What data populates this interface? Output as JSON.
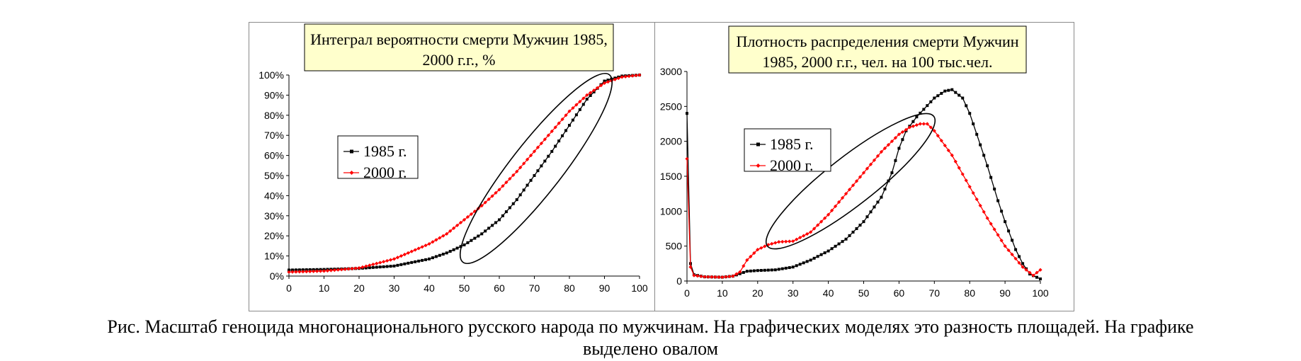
{
  "colors": {
    "series1985": "#000000",
    "series2000": "#ff0000",
    "title_bg": "#ffffcc",
    "oval": "#000000"
  },
  "caption": {
    "line1": "Рис. Масштаб геноцида многонационального русского народа по мужчинам. На графических моделях это разность площадей. На графике",
    "line2": "выделено овалом"
  },
  "chart_data": [
    {
      "type": "line",
      "title_line1": "Интеграл вероятности смерти Мужчин 1985,",
      "title_line2": "2000 г.г., %",
      "xlabel": "",
      "ylabel": "",
      "xlim": [
        0,
        100
      ],
      "ylim": [
        0,
        100
      ],
      "xticks": [
        "0",
        "10",
        "20",
        "30",
        "40",
        "50",
        "60",
        "70",
        "80",
        "90",
        "100"
      ],
      "yticks": [
        "0%",
        "10%",
        "20%",
        "30%",
        "40%",
        "50%",
        "60%",
        "70%",
        "80%",
        "90%",
        "100%"
      ],
      "legend_position": "left-middle",
      "highlight": "oval",
      "series": [
        {
          "name": "1985 г.",
          "color_key": "series1985",
          "points": [
            [
              0,
              3
            ],
            [
              10,
              3.3
            ],
            [
              20,
              3.8
            ],
            [
              30,
              5
            ],
            [
              40,
              8.5
            ],
            [
              45,
              11.5
            ],
            [
              50,
              15.5
            ],
            [
              55,
              21
            ],
            [
              60,
              28
            ],
            [
              65,
              38
            ],
            [
              70,
              50
            ],
            [
              75,
              62
            ],
            [
              80,
              75
            ],
            [
              85,
              88
            ],
            [
              90,
              97
            ],
            [
              95,
              99.5
            ],
            [
              100,
              100
            ]
          ]
        },
        {
          "name": "2000 г.",
          "color_key": "series2000",
          "points": [
            [
              0,
              2
            ],
            [
              10,
              2.5
            ],
            [
              20,
              4
            ],
            [
              30,
              8.5
            ],
            [
              40,
              16
            ],
            [
              45,
              21
            ],
            [
              50,
              28
            ],
            [
              55,
              35
            ],
            [
              60,
              43
            ],
            [
              65,
              52
            ],
            [
              70,
              62
            ],
            [
              75,
              72
            ],
            [
              80,
              82
            ],
            [
              85,
              90
            ],
            [
              90,
              96
            ],
            [
              95,
              99
            ],
            [
              100,
              100
            ]
          ]
        }
      ]
    },
    {
      "type": "line",
      "title_line1": "Плотность распределения смерти Мужчин",
      "title_line2": "1985, 2000 г.г., чел. на 100 тыс.чел.",
      "xlabel": "",
      "ylabel": "",
      "xlim": [
        0,
        100
      ],
      "ylim": [
        0,
        3000
      ],
      "xticks": [
        "0",
        "10",
        "20",
        "30",
        "40",
        "50",
        "60",
        "70",
        "80",
        "90",
        "100"
      ],
      "yticks": [
        "0",
        "500",
        "1000",
        "1500",
        "2000",
        "2500",
        "3000"
      ],
      "legend_position": "top-left",
      "highlight": "oval",
      "series": [
        {
          "name": "1985 г.",
          "color_key": "series1985",
          "points": [
            [
              0,
              2400
            ],
            [
              1,
              250
            ],
            [
              2,
              90
            ],
            [
              5,
              60
            ],
            [
              10,
              55
            ],
            [
              13,
              70
            ],
            [
              17,
              140
            ],
            [
              20,
              150
            ],
            [
              25,
              160
            ],
            [
              30,
              200
            ],
            [
              35,
              300
            ],
            [
              40,
              430
            ],
            [
              45,
              600
            ],
            [
              50,
              850
            ],
            [
              55,
              1200
            ],
            [
              58,
              1550
            ],
            [
              60,
              1900
            ],
            [
              62,
              2150
            ],
            [
              65,
              2350
            ],
            [
              70,
              2620
            ],
            [
              73,
              2720
            ],
            [
              75,
              2740
            ],
            [
              78,
              2620
            ],
            [
              80,
              2400
            ],
            [
              85,
              1650
            ],
            [
              88,
              1150
            ],
            [
              90,
              850
            ],
            [
              93,
              450
            ],
            [
              95,
              250
            ],
            [
              97,
              100
            ],
            [
              100,
              30
            ]
          ]
        },
        {
          "name": "2000 г.",
          "color_key": "series2000",
          "points": [
            [
              0,
              1750
            ],
            [
              1,
              200
            ],
            [
              2,
              80
            ],
            [
              5,
              60
            ],
            [
              10,
              55
            ],
            [
              13,
              70
            ],
            [
              15,
              130
            ],
            [
              17,
              300
            ],
            [
              20,
              450
            ],
            [
              23,
              520
            ],
            [
              26,
              560
            ],
            [
              30,
              570
            ],
            [
              35,
              700
            ],
            [
              40,
              950
            ],
            [
              45,
              1250
            ],
            [
              50,
              1550
            ],
            [
              55,
              1850
            ],
            [
              60,
              2100
            ],
            [
              63,
              2200
            ],
            [
              66,
              2250
            ],
            [
              68,
              2250
            ],
            [
              70,
              2150
            ],
            [
              75,
              1800
            ],
            [
              80,
              1350
            ],
            [
              85,
              900
            ],
            [
              90,
              500
            ],
            [
              95,
              200
            ],
            [
              98,
              80
            ],
            [
              100,
              160
            ]
          ]
        }
      ]
    }
  ]
}
